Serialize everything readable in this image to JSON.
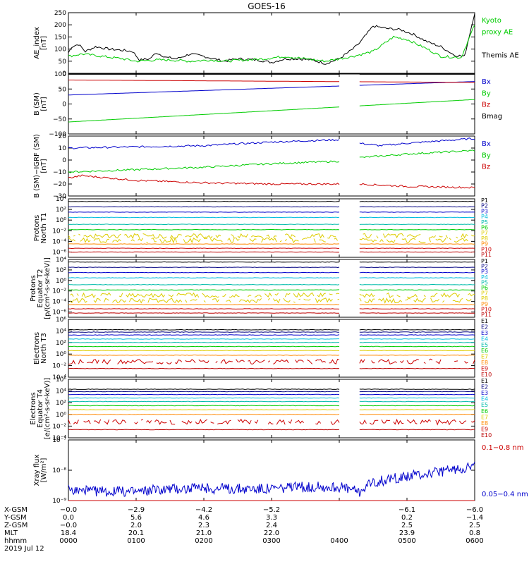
{
  "title": "GOES-16",
  "colors": {
    "black": "#000000",
    "blue": "#0000cc",
    "green": "#00cc00",
    "red": "#cc0000",
    "navy": "#000080",
    "cyan": "#00bbdd",
    "teal": "#00bbaa",
    "yellow": "#ddcc00",
    "orange": "#ff8800",
    "dred": "#bb0000",
    "gray": "#888888"
  },
  "chart_data": [
    {
      "type": "line",
      "id": "ae",
      "ylabel": [
        "AE_index",
        "[nT]"
      ],
      "ylim": [
        0,
        250
      ],
      "yticks": [
        {
          "v": 0,
          "label": "0"
        },
        {
          "v": 50,
          "label": "50"
        },
        {
          "v": 100,
          "label": "100"
        },
        {
          "v": 150,
          "label": "150"
        },
        {
          "v": 200,
          "label": "200"
        },
        {
          "v": 250,
          "label": "250"
        }
      ],
      "series": [
        {
          "name": "Themis AE",
          "color": "black",
          "x": [
            0,
            0.05,
            0.15,
            0.25,
            0.4,
            0.6,
            0.8,
            0.95,
            1.05,
            1.2,
            1.3,
            1.45,
            1.6,
            1.8,
            2.0,
            2.3,
            2.5,
            2.8,
            3.0,
            3.2,
            3.4,
            3.6,
            3.8,
            4.0,
            4.1,
            4.2,
            4.3,
            4.5,
            4.7,
            4.9,
            5.1,
            5.3,
            5.5,
            5.7,
            5.85,
            6.0
          ],
          "y": [
            85,
            110,
            120,
            90,
            110,
            100,
            95,
            90,
            55,
            60,
            85,
            65,
            60,
            80,
            70,
            50,
            60,
            55,
            45,
            60,
            60,
            55,
            40,
            60,
            80,
            100,
            125,
            195,
            185,
            180,
            160,
            130,
            110,
            75,
            70,
            250
          ]
        },
        {
          "name": "Kyoto proxy AE",
          "color": "green",
          "x": [
            0,
            0.2,
            0.5,
            0.8,
            1.0,
            1.3,
            1.5,
            1.8,
            2.1,
            2.3,
            2.6,
            2.9,
            3.2,
            3.5,
            3.8,
            4.0,
            4.2,
            4.5,
            4.8,
            5.0,
            5.3,
            5.5,
            5.8,
            6.0
          ],
          "y": [
            70,
            80,
            70,
            60,
            50,
            55,
            55,
            50,
            55,
            50,
            55,
            60,
            70,
            60,
            50,
            60,
            70,
            90,
            150,
            140,
            100,
            70,
            65,
            200
          ]
        }
      ],
      "right_labels": [
        {
          "text": "Kyoto",
          "color": "green",
          "row": 0
        },
        {
          "text": "proxy AE",
          "color": "green",
          "row": 1
        },
        {
          "text": "Themis AE",
          "color": "black",
          "row": 3
        }
      ]
    },
    {
      "type": "line",
      "id": "bsm",
      "ylabel": [
        "B (SM)",
        "[nT]"
      ],
      "ylim": [
        -100,
        100
      ],
      "yticks": [
        {
          "v": -100,
          "label": "−100"
        },
        {
          "v": -50,
          "label": "−50"
        },
        {
          "v": 0,
          "label": "0"
        },
        {
          "v": 50,
          "label": "50"
        },
        {
          "v": 100,
          "label": "100"
        }
      ],
      "gap": [
        4.0,
        4.3
      ],
      "series": [
        {
          "name": "Bx",
          "color": "blue",
          "x": [
            0,
            6
          ],
          "y": [
            30,
            75
          ]
        },
        {
          "name": "By",
          "color": "green",
          "x": [
            0,
            6
          ],
          "y": [
            -60,
            15
          ]
        },
        {
          "name": "Bz",
          "color": "red",
          "x": [
            0,
            6
          ],
          "y": [
            80,
            72
          ]
        },
        {
          "name": "Bmag",
          "color": "black",
          "x": [
            0,
            6
          ],
          "y": [
            99,
            99
          ]
        }
      ],
      "right_labels": [
        {
          "text": "Bx",
          "color": "blue",
          "row": 0
        },
        {
          "text": "By",
          "color": "green",
          "row": 1
        },
        {
          "text": "Bz",
          "color": "red",
          "row": 2
        },
        {
          "text": "Bmag",
          "color": "black",
          "row": 3
        }
      ]
    },
    {
      "type": "line",
      "id": "bigrf",
      "ylabel": [
        "B (SM)−IGRF (SM)",
        "[nT]"
      ],
      "ylim": [
        -30,
        20
      ],
      "yticks": [
        {
          "v": -30,
          "label": "−30"
        },
        {
          "v": -20,
          "label": "−20"
        },
        {
          "v": -10,
          "label": "−10"
        },
        {
          "v": 0,
          "label": "0"
        },
        {
          "v": 10,
          "label": "10"
        },
        {
          "v": 20,
          "label": "20"
        }
      ],
      "gap": [
        4.0,
        4.3
      ],
      "series": [
        {
          "name": "Bx",
          "color": "blue",
          "x": [
            0,
            1,
            2,
            3,
            4,
            4.3,
            4.6,
            5,
            6
          ],
          "y": [
            10,
            11,
            12,
            15,
            17,
            14,
            12,
            14,
            18
          ]
        },
        {
          "name": "By",
          "color": "green",
          "x": [
            0,
            1,
            2,
            3,
            4,
            4.3,
            5,
            6
          ],
          "y": [
            -10,
            -8,
            -6,
            -3,
            -1,
            2,
            5,
            8
          ]
        },
        {
          "name": "Bz",
          "color": "red",
          "x": [
            0,
            0.2,
            1,
            2,
            3,
            4,
            4.3,
            5,
            6
          ],
          "y": [
            -15,
            -13,
            -17,
            -19,
            -20,
            -20,
            -20,
            -22,
            -23
          ]
        }
      ],
      "right_labels": [
        {
          "text": "Bx",
          "color": "blue",
          "row": 0
        },
        {
          "text": "By",
          "color": "green",
          "row": 1
        },
        {
          "text": "Bz",
          "color": "red",
          "row": 2
        }
      ]
    },
    {
      "type": "log_flux",
      "id": "pnt1",
      "ylabel": [
        "Protons",
        "North T1"
      ],
      "ylog": [
        -7,
        4
      ],
      "yticks": [
        {
          "v": 4,
          "label": "10⁴"
        },
        {
          "v": 2,
          "label": "10²"
        },
        {
          "v": 0,
          "label": "10⁰"
        },
        {
          "v": -2,
          "label": "10⁻²"
        },
        {
          "v": -4,
          "label": "10⁻⁴"
        },
        {
          "v": -6,
          "label": "10⁻⁶"
        }
      ],
      "gap": [
        4.0,
        4.3
      ],
      "channels": [
        {
          "name": "P1",
          "color": "black",
          "log": 3.5
        },
        {
          "name": "P2",
          "color": "navy",
          "log": 2.5
        },
        {
          "name": "P3",
          "color": "blue",
          "log": 1.5
        },
        {
          "name": "P4",
          "color": "cyan",
          "log": 0.5
        },
        {
          "name": "P5",
          "color": "teal",
          "log": -0.8
        },
        {
          "name": "P6",
          "color": "green",
          "log": -1.8
        },
        {
          "name": "P7",
          "color": "yellow",
          "log": -3.0,
          "noisy": true
        },
        {
          "name": "P8",
          "color": "yellow",
          "log": -3.8,
          "noisy": true
        },
        {
          "name": "P9",
          "color": "orange",
          "log": -4.5
        },
        {
          "name": "P10",
          "color": "red",
          "log": -5.3
        },
        {
          "name": "P11",
          "color": "dred",
          "log": -6.0
        }
      ]
    },
    {
      "type": "log_flux",
      "id": "pet2",
      "ylabel": [
        "Protons",
        "Equator T2",
        "[p/(cm²-s-sr-keV)]"
      ],
      "ylog": [
        -7,
        4
      ],
      "yticks": [
        {
          "v": 4,
          "label": "10⁴"
        },
        {
          "v": 2,
          "label": "10²"
        },
        {
          "v": 0,
          "label": "10⁰"
        },
        {
          "v": -2,
          "label": "10⁻²"
        },
        {
          "v": -4,
          "label": "10⁻⁴"
        },
        {
          "v": -6,
          "label": "10⁻⁶"
        }
      ],
      "gap": [
        4.0,
        4.3
      ],
      "channels": [
        {
          "name": "P1",
          "color": "black",
          "log": 3.5
        },
        {
          "name": "P2",
          "color": "navy",
          "log": 2.5
        },
        {
          "name": "P3",
          "color": "blue",
          "log": 1.5
        },
        {
          "name": "P4",
          "color": "cyan",
          "log": 0.5
        },
        {
          "name": "P5",
          "color": "teal",
          "log": -0.8
        },
        {
          "name": "P6",
          "color": "green",
          "log": -1.8
        },
        {
          "name": "P7",
          "color": "yellow",
          "log": -2.8,
          "noisy": true
        },
        {
          "name": "P8",
          "color": "yellow",
          "log": -3.8,
          "noisy": true
        },
        {
          "name": "P9",
          "color": "orange",
          "log": -4.6
        },
        {
          "name": "P10",
          "color": "red",
          "log": -5.4
        },
        {
          "name": "P11",
          "color": "dred",
          "log": -6.2
        }
      ]
    },
    {
      "type": "log_flux",
      "id": "ent3",
      "ylabel": [
        "Electrons",
        "North T3"
      ],
      "ylog": [
        -4,
        6
      ],
      "yticks": [
        {
          "v": 6,
          "label": "10⁶"
        },
        {
          "v": 4,
          "label": "10⁴"
        },
        {
          "v": 2,
          "label": "10²"
        },
        {
          "v": 0,
          "label": "10⁰"
        },
        {
          "v": -2,
          "label": "10⁻²"
        },
        {
          "v": -4,
          "label": "10⁻⁴"
        }
      ],
      "gap": [
        4.0,
        4.3
      ],
      "channels": [
        {
          "name": "E1",
          "color": "black",
          "log": 4.2
        },
        {
          "name": "E2",
          "color": "navy",
          "log": 3.8
        },
        {
          "name": "E3",
          "color": "blue",
          "log": 3.3
        },
        {
          "name": "E4",
          "color": "cyan",
          "log": 2.6
        },
        {
          "name": "E5",
          "color": "teal",
          "log": 2.0
        },
        {
          "name": "E6",
          "color": "green",
          "log": 1.3
        },
        {
          "name": "E7",
          "color": "yellow",
          "log": 0.6
        },
        {
          "name": "E8",
          "color": "orange",
          "log": -0.2
        },
        {
          "name": "E9",
          "color": "red",
          "log": -1.3,
          "noisy": true
        },
        {
          "name": "E10",
          "color": "dred",
          "log": -2.5
        }
      ]
    },
    {
      "type": "log_flux",
      "id": "eet4",
      "ylabel": [
        "Electrons",
        "Equator T4",
        "[e/(cm²-s-sr-keV)]"
      ],
      "ylog": [
        -4,
        6
      ],
      "yticks": [
        {
          "v": 6,
          "label": "10⁶"
        },
        {
          "v": 4,
          "label": "10⁴"
        },
        {
          "v": 2,
          "label": "10²"
        },
        {
          "v": 0,
          "label": "10⁰"
        },
        {
          "v": -2,
          "label": "10⁻²"
        },
        {
          "v": -4,
          "label": "10⁻⁴"
        }
      ],
      "gap": [
        4.0,
        4.3
      ],
      "channels": [
        {
          "name": "E1",
          "color": "black",
          "log": 4.3
        },
        {
          "name": "E2",
          "color": "navy",
          "log": 3.9
        },
        {
          "name": "E3",
          "color": "blue",
          "log": 3.4
        },
        {
          "name": "E4",
          "color": "cyan",
          "log": 2.8
        },
        {
          "name": "E5",
          "color": "teal",
          "log": 2.2
        },
        {
          "name": "E6",
          "color": "green",
          "log": 1.5
        },
        {
          "name": "E7",
          "color": "yellow",
          "log": 0.8
        },
        {
          "name": "E8",
          "color": "orange",
          "log": 0.0
        },
        {
          "name": "E9",
          "color": "red",
          "log": -1.3,
          "noisy": true
        },
        {
          "name": "E10",
          "color": "dred",
          "log": -2.6
        }
      ]
    },
    {
      "type": "log_line",
      "id": "xray",
      "ylabel": [
        "Xray flux",
        "[W/m²]"
      ],
      "ylog": [
        -9,
        -7
      ],
      "yticks": [
        {
          "v": -7,
          "label": "10⁻⁷"
        },
        {
          "v": -8,
          "label": "10⁻⁸"
        },
        {
          "v": -9,
          "label": "10⁻⁹"
        }
      ],
      "series": [
        {
          "name": "0.05−0.4 nm",
          "color": "blue",
          "x": [
            0,
            0.5,
            1,
            1.5,
            2,
            2.5,
            3,
            3.5,
            4,
            4.3,
            4.5,
            5,
            5.5,
            6
          ],
          "logy": [
            -8.65,
            -8.7,
            -8.7,
            -8.6,
            -8.6,
            -8.6,
            -8.6,
            -8.55,
            -8.55,
            -8.7,
            -8.4,
            -8.2,
            -8.05,
            -7.85
          ]
        },
        {
          "name": "0.1−0.8 nm",
          "color": "red",
          "x": [
            0,
            6
          ],
          "logy": [
            -9,
            -9
          ]
        }
      ],
      "right_labels": [
        {
          "text": "0.1−0.8 nm",
          "color": "red",
          "row": 0
        },
        {
          "text": "0.05−0.4 nm",
          "color": "blue",
          "row": 4
        }
      ]
    }
  ],
  "xaxis": {
    "ticks": [
      0,
      1,
      2,
      3,
      4,
      5,
      6
    ],
    "rows": [
      {
        "label": "X-GSM",
        "values": [
          "−0.0",
          "−2.9",
          "−4.2",
          "−5.2",
          "",
          "−6.1",
          "−6.0"
        ]
      },
      {
        "label": "Y-GSM",
        "values": [
          "0.0",
          "5.6",
          "4.6",
          "3.3",
          "",
          "0.2",
          "−1.4"
        ]
      },
      {
        "label": "Z-GSM",
        "values": [
          "−0.0",
          "2.0",
          "2.3",
          "2.4",
          "",
          "2.5",
          "2.5"
        ]
      },
      {
        "label": "MLT",
        "values": [
          "18.4",
          "20.1",
          "21.0",
          "22.0",
          "",
          "23.9",
          "0.8"
        ]
      },
      {
        "label": "hhmm",
        "values": [
          "0000",
          "0100",
          "0200",
          "0300",
          "0400",
          "0500",
          "0600"
        ]
      }
    ],
    "date": "2019 Jul 12"
  }
}
